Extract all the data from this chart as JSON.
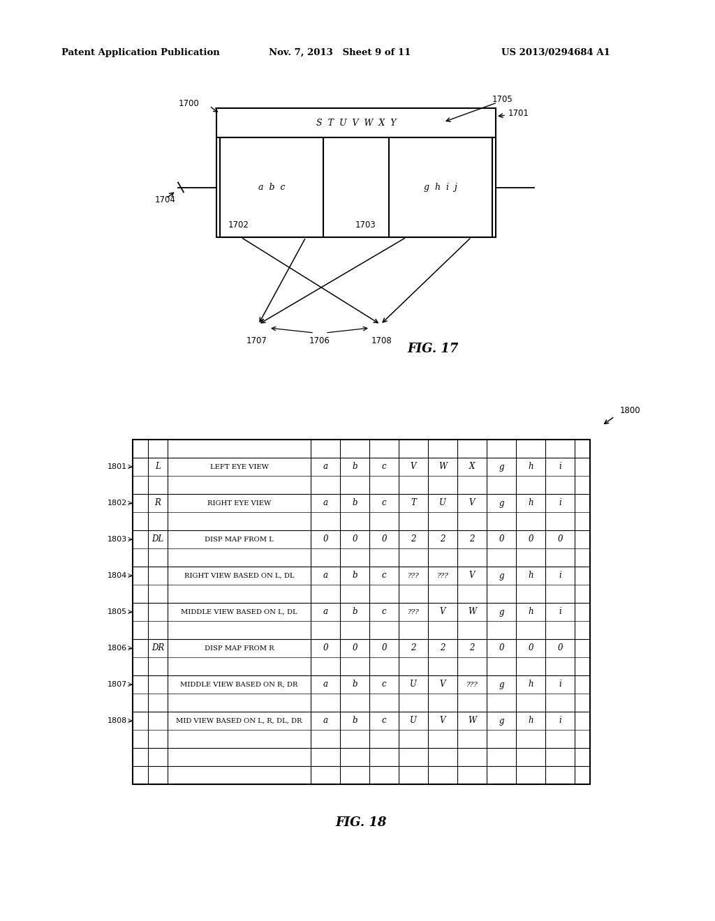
{
  "header_left": "Patent Application Publication",
  "header_mid": "Nov. 7, 2013   Sheet 9 of 11",
  "header_right": "US 2013/0294684 A1",
  "fig17_label": "FIG. 17",
  "fig18_label": "FIG. 18",
  "fig17": {
    "label_1700": "1700",
    "label_1701": "1701",
    "label_1702": "1702",
    "label_1703": "1703",
    "label_1704": "1704",
    "label_1705": "1705",
    "label_1706": "1706",
    "label_1707": "1707",
    "label_1708": "1708"
  },
  "fig18": {
    "label_1800": "1800",
    "rows": [
      {
        "id": "1801",
        "col1": "L",
        "col2": "LEFT EYE VIEW",
        "data": [
          "a",
          "b",
          "c",
          "V",
          "W",
          "X",
          "g",
          "h",
          "i"
        ]
      },
      {
        "id": "1802",
        "col1": "R",
        "col2": "RIGHT EYE VIEW",
        "data": [
          "a",
          "b",
          "c",
          "T",
          "U",
          "V",
          "g",
          "h",
          "i"
        ]
      },
      {
        "id": "1803",
        "col1": "DL",
        "col2": "DISP MAP FROM L",
        "data": [
          "0",
          "0",
          "0",
          "2",
          "2",
          "2",
          "0",
          "0",
          "0"
        ]
      },
      {
        "id": "1804",
        "col1": "",
        "col2": "RIGHT VIEW BASED ON L, DL",
        "data": [
          "a",
          "b",
          "c",
          "???",
          "???",
          "V",
          "g",
          "h",
          "i"
        ]
      },
      {
        "id": "1805",
        "col1": "",
        "col2": "MIDDLE VIEW BASED ON L, DL",
        "data": [
          "a",
          "b",
          "c",
          "???",
          "V",
          "W",
          "g",
          "h",
          "i"
        ]
      },
      {
        "id": "1806",
        "col1": "DR",
        "col2": "DISP MAP FROM R",
        "data": [
          "0",
          "0",
          "0",
          "2",
          "2",
          "2",
          "0",
          "0",
          "0"
        ]
      },
      {
        "id": "1807",
        "col1": "",
        "col2": "MIDDLE VIEW BASED ON R, DR",
        "data": [
          "a",
          "b",
          "c",
          "U",
          "V",
          "???",
          "g",
          "h",
          "i"
        ]
      },
      {
        "id": "1808",
        "col1": "",
        "col2": "MID VIEW BASED ON L, R, DL, DR",
        "data": [
          "a",
          "b",
          "c",
          "U",
          "V",
          "W",
          "g",
          "h",
          "i"
        ]
      }
    ]
  }
}
